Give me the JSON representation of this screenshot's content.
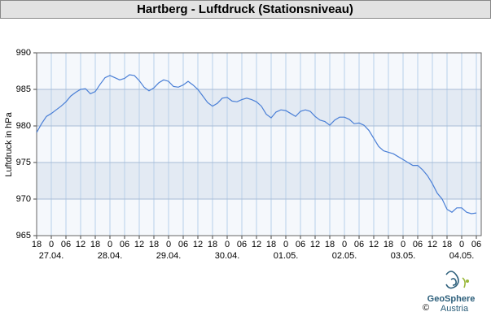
{
  "chart_data": {
    "type": "line",
    "title": "Hartberg - Luftdruck (Stationsniveau)",
    "y_label": "Luftdruck in hPa",
    "color": "#4a7fd6",
    "x": [
      0,
      2,
      4,
      6,
      8,
      10,
      12,
      14,
      16,
      18,
      20,
      22,
      24,
      26,
      28,
      30,
      32,
      34,
      36,
      38,
      40,
      42,
      44,
      46,
      48,
      50,
      52,
      54,
      56,
      58,
      60,
      62,
      64,
      66,
      68,
      70,
      72,
      74,
      76,
      78,
      80,
      82,
      84,
      86,
      88,
      90,
      92,
      94,
      96,
      98,
      100,
      102,
      104,
      106,
      108,
      110,
      112,
      114,
      116,
      118,
      120,
      122,
      124,
      126,
      128,
      130,
      132,
      134,
      136,
      138,
      140,
      142,
      144,
      146,
      148,
      150,
      152,
      154,
      156,
      158,
      160,
      162,
      164,
      166,
      168,
      170,
      172,
      174,
      176,
      178,
      180
    ],
    "values": [
      979.1,
      980.3,
      981.3,
      981.7,
      982.2,
      982.7,
      983.3,
      984.1,
      984.6,
      985.0,
      985.1,
      984.4,
      984.7,
      985.7,
      986.6,
      986.9,
      986.6,
      986.3,
      986.5,
      987.0,
      986.9,
      986.2,
      985.3,
      984.8,
      985.2,
      985.9,
      986.3,
      986.1,
      985.4,
      985.3,
      985.6,
      986.1,
      985.6,
      985.0,
      984.1,
      983.2,
      982.7,
      983.1,
      983.8,
      983.9,
      983.4,
      983.3,
      983.6,
      983.8,
      983.6,
      983.3,
      982.7,
      981.6,
      981.1,
      981.9,
      982.2,
      982.1,
      981.7,
      981.3,
      982.0,
      982.2,
      982.0,
      981.3,
      980.8,
      980.6,
      980.1,
      980.8,
      981.2,
      981.2,
      980.9,
      980.3,
      980.4,
      980.1,
      979.4,
      978.3,
      977.2,
      976.6,
      976.4,
      976.2,
      975.8,
      975.4,
      975.0,
      974.6,
      974.6,
      974.0,
      973.2,
      972.1,
      970.8,
      970.0,
      968.6,
      968.2,
      968.8,
      968.8,
      968.2,
      968.0,
      968.1
    ],
    "xlim": [
      0,
      182
    ],
    "xticks": [
      {
        "value": 0,
        "label": "18"
      },
      {
        "value": 6,
        "label": "0"
      },
      {
        "value": 12,
        "label": "06"
      },
      {
        "value": 18,
        "label": "12"
      },
      {
        "value": 24,
        "label": "18"
      },
      {
        "value": 30,
        "label": "0"
      },
      {
        "value": 36,
        "label": "06"
      },
      {
        "value": 42,
        "label": "12"
      },
      {
        "value": 48,
        "label": "18"
      },
      {
        "value": 54,
        "label": "0"
      },
      {
        "value": 60,
        "label": "06"
      },
      {
        "value": 66,
        "label": "12"
      },
      {
        "value": 72,
        "label": "18"
      },
      {
        "value": 78,
        "label": "0"
      },
      {
        "value": 84,
        "label": "06"
      },
      {
        "value": 90,
        "label": "12"
      },
      {
        "value": 96,
        "label": "18"
      },
      {
        "value": 102,
        "label": "0"
      },
      {
        "value": 108,
        "label": "06"
      },
      {
        "value": 114,
        "label": "12"
      },
      {
        "value": 120,
        "label": "18"
      },
      {
        "value": 126,
        "label": "0"
      },
      {
        "value": 132,
        "label": "06"
      },
      {
        "value": 138,
        "label": "12"
      },
      {
        "value": 144,
        "label": "18"
      },
      {
        "value": 150,
        "label": "0"
      },
      {
        "value": 156,
        "label": "06"
      },
      {
        "value": 162,
        "label": "12"
      },
      {
        "value": 168,
        "label": "18"
      },
      {
        "value": 174,
        "label": "0"
      },
      {
        "value": 180,
        "label": "06"
      }
    ],
    "date_labels": [
      {
        "value": 6,
        "label": "27.04."
      },
      {
        "value": 30,
        "label": "28.04."
      },
      {
        "value": 54,
        "label": "29.04."
      },
      {
        "value": 78,
        "label": "30.04."
      },
      {
        "value": 102,
        "label": "01.05."
      },
      {
        "value": 126,
        "label": "02.05."
      },
      {
        "value": 150,
        "label": "03.05."
      },
      {
        "value": 174,
        "label": "04.05."
      }
    ],
    "ylim": [
      965,
      990
    ],
    "yticks": [
      965,
      970,
      975,
      980,
      985,
      990
    ],
    "grid": true
  },
  "footer": {
    "copyright": "©",
    "brand": "GeoSphere",
    "country": "Austria"
  }
}
